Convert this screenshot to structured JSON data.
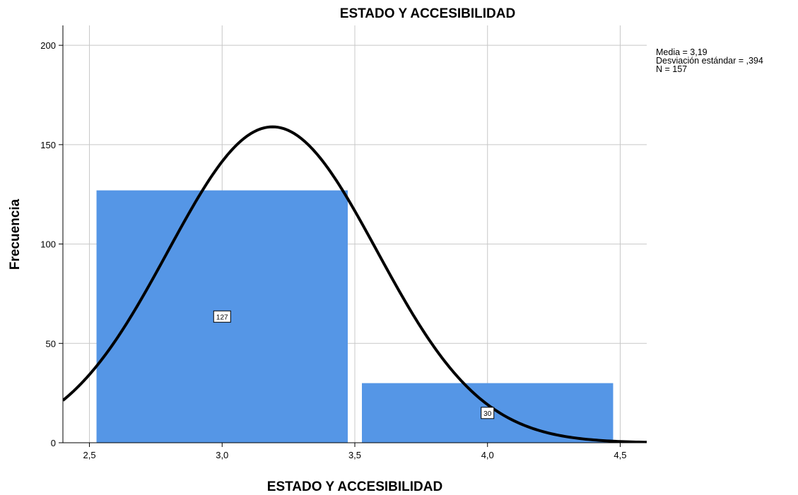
{
  "chart_data": {
    "type": "bar",
    "title": "ESTADO Y ACCESIBILIDAD",
    "xlabel": "ESTADO Y ACCESIBILIDAD",
    "ylabel": "Frecuencia",
    "bins": [
      {
        "x0": 2.5,
        "x1": 3.5,
        "value": 127,
        "label": "127"
      },
      {
        "x0": 3.5,
        "x1": 4.5,
        "value": 30,
        "label": "30"
      }
    ],
    "xlim": [
      2.4,
      4.6
    ],
    "ylim": [
      0,
      210
    ],
    "xticks": [
      2.5,
      3.0,
      3.5,
      4.0,
      4.5
    ],
    "xtick_labels": [
      "2,5",
      "3,0",
      "3,5",
      "4,0",
      "4,5"
    ],
    "yticks": [
      0,
      50,
      100,
      150,
      200
    ],
    "ytick_labels": [
      "0",
      "50",
      "100",
      "150",
      "200"
    ],
    "grid": true,
    "normal_curve": {
      "mean": 3.19,
      "std": 0.394,
      "n": 157,
      "bin_width": 1.0
    },
    "stats": [
      "Media = 3,19",
      "Desviación estándar = ,394",
      "N = 157"
    ],
    "bar_color": "#5596e6",
    "curve_color": "#000000",
    "grid_color": "#c8c8c8"
  }
}
